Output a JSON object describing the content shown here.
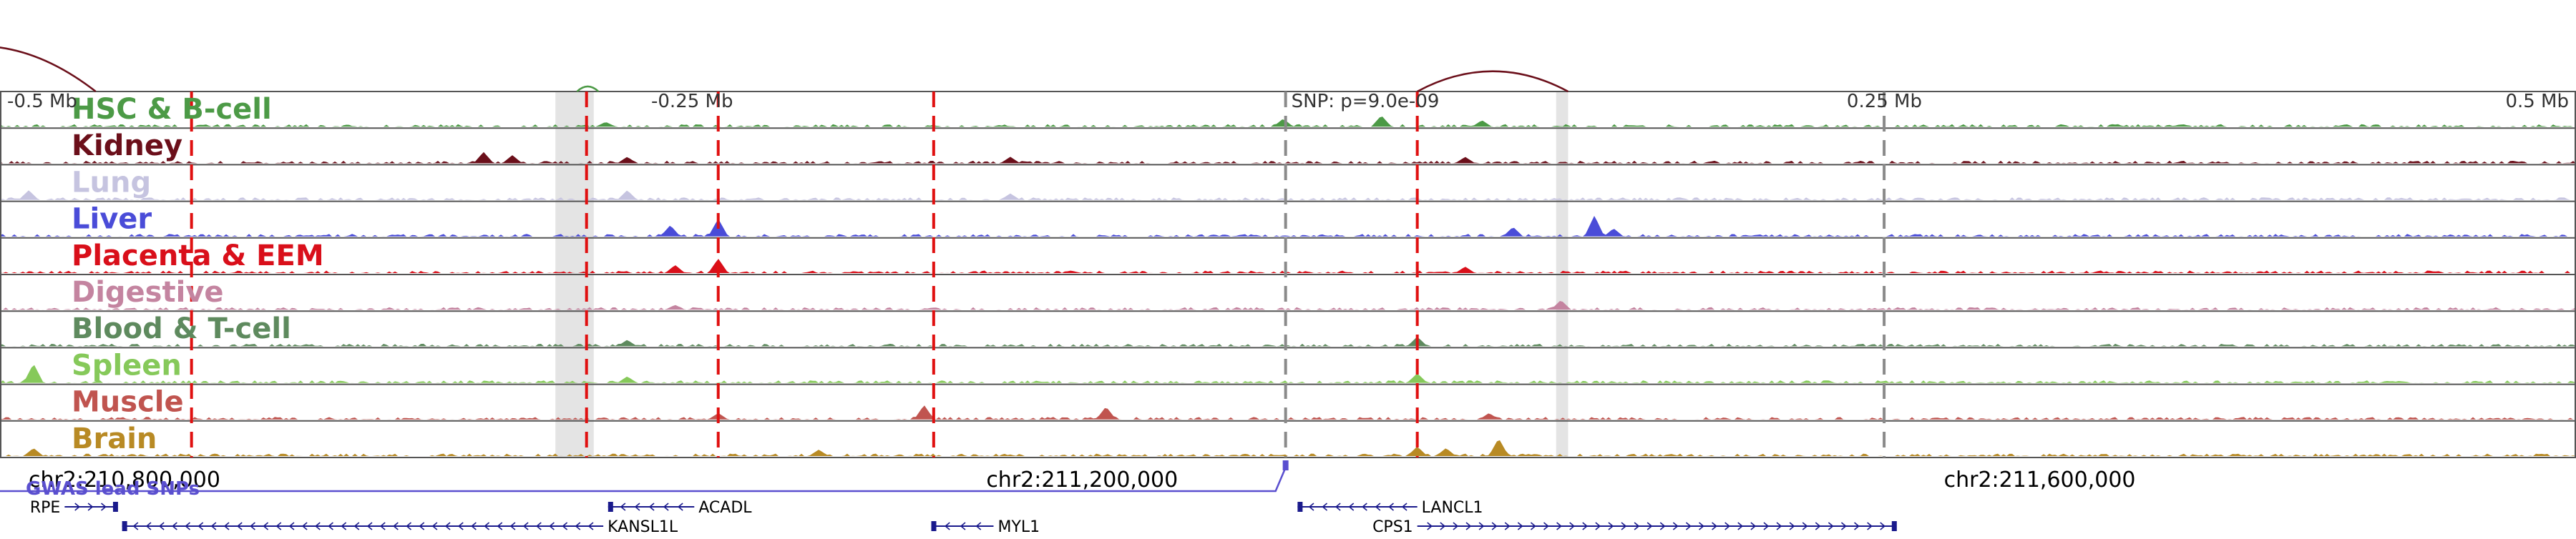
{
  "chart_data": {
    "type": "genome-browser",
    "region": {
      "chrom": "chr2",
      "start": 210748000,
      "end": 211824000
    },
    "scale_labels": [
      "-0.5 Mb",
      "-0.25 Mb",
      "0.25 Mb",
      "0.5 Mb"
    ],
    "coordinate_labels": [
      {
        "label": "chr2:210,800,000",
        "pos": 210800000
      },
      {
        "label": "chr2:211,200,000",
        "pos": 211200000
      },
      {
        "label": "chr2:211,600,000",
        "pos": 211600000
      }
    ],
    "snp": {
      "label": "SNP: p=9.0e-09",
      "pos": 211285000
    },
    "tracks": [
      {
        "name": "HSC & B-cell",
        "color": "#4c9a46",
        "peaks": [
          [
            211284000,
            0.25
          ],
          [
            211325000,
            0.35
          ],
          [
            211367000,
            0.2
          ],
          [
            211001000,
            0.15
          ]
        ]
      },
      {
        "name": "Kidney",
        "color": "#6b0f1a",
        "peaks": [
          [
            210950000,
            0.35
          ],
          [
            210962000,
            0.25
          ],
          [
            211010000,
            0.2
          ],
          [
            211170000,
            0.2
          ],
          [
            211360000,
            0.2
          ]
        ]
      },
      {
        "name": "Lung",
        "color": "#c6c4e0",
        "peaks": [
          [
            210760000,
            0.3
          ],
          [
            211010000,
            0.3
          ],
          [
            211170000,
            0.2
          ]
        ]
      },
      {
        "name": "Liver",
        "color": "#4a4cd8",
        "peaks": [
          [
            211028000,
            0.35
          ],
          [
            211048000,
            0.55
          ],
          [
            211414000,
            0.65
          ],
          [
            211422000,
            0.25
          ],
          [
            211380000,
            0.3
          ]
        ]
      },
      {
        "name": "Placenta & EEM",
        "color": "#d90f1a",
        "peaks": [
          [
            211048000,
            0.45
          ],
          [
            211030000,
            0.25
          ],
          [
            211360000,
            0.2
          ]
        ]
      },
      {
        "name": "Digestive",
        "color": "#c484a0",
        "peaks": [
          [
            211400000,
            0.3
          ],
          [
            211030000,
            0.15
          ]
        ]
      },
      {
        "name": "Blood & T-cell",
        "color": "#5e8a5e",
        "peaks": [
          [
            211340000,
            0.3
          ],
          [
            211010000,
            0.2
          ]
        ]
      },
      {
        "name": "Spleen",
        "color": "#86c95a",
        "peaks": [
          [
            210762000,
            0.6
          ],
          [
            211340000,
            0.3
          ],
          [
            211010000,
            0.2
          ]
        ]
      },
      {
        "name": "Muscle",
        "color": "#c0544f",
        "peaks": [
          [
            211134000,
            0.45
          ],
          [
            211210000,
            0.4
          ],
          [
            211048000,
            0.2
          ],
          [
            211370000,
            0.2
          ]
        ]
      },
      {
        "name": "Brain",
        "color": "#b88a24",
        "peaks": [
          [
            210762000,
            0.25
          ],
          [
            211340000,
            0.3
          ],
          [
            211352000,
            0.25
          ],
          [
            211374000,
            0.55
          ],
          [
            211090000,
            0.2
          ]
        ]
      }
    ],
    "red_dashed_markers": [
      210828000,
      210993000,
      211048000,
      211138000,
      211340000
    ],
    "gray_dashed_markers": [
      211285000,
      211535000
    ],
    "gray_bands": [
      [
        210980000,
        210996000
      ],
      [
        211398000,
        211403000
      ]
    ],
    "arcs": [
      {
        "from": 210690000,
        "to": 210788000,
        "color": "#6b0f1a",
        "height": 0.9
      },
      {
        "from": 210989000,
        "to": 210998000,
        "color": "#4c9a46",
        "height": 0.1
      },
      {
        "from": 211340000,
        "to": 211403000,
        "color": "#6b0f1a",
        "height": 0.4
      }
    ],
    "gwas": {
      "label": "GWAS lead SNPs",
      "color": "#5a4fcf",
      "pos": 211285000
    },
    "genes": [
      {
        "name": "RPE",
        "start": 210775000,
        "end": 210797000,
        "strand": "+",
        "row": 0
      },
      {
        "name": "KANSL1L",
        "start": 210799000,
        "end": 211000000,
        "strand": "-",
        "row": 1
      },
      {
        "name": "ACADL",
        "start": 211002000,
        "end": 211038000,
        "strand": "-",
        "row": 0
      },
      {
        "name": "MYL1",
        "start": 211137000,
        "end": 211163000,
        "strand": "-",
        "row": 1
      },
      {
        "name": "LANCL1",
        "start": 211290000,
        "end": 211340000,
        "strand": "-",
        "row": 0
      },
      {
        "name": "CPS1",
        "start": 211340000,
        "end": 211540000,
        "strand": "+",
        "row": 1
      }
    ]
  }
}
